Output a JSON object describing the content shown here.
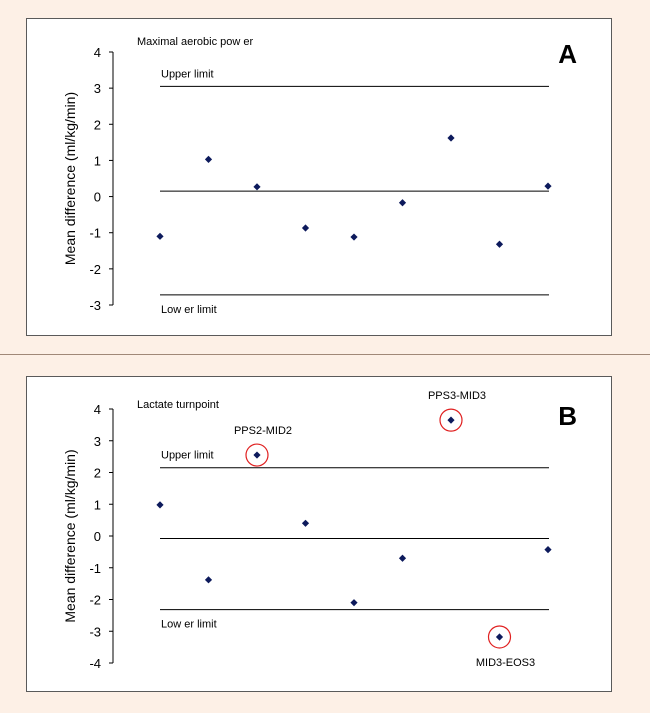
{
  "colors": {
    "background": "#fdf0e6",
    "marker": "#0d1a5c",
    "circle": "#e02020",
    "line": "#000000"
  },
  "chart_data": [
    {
      "type": "scatter",
      "panel_letter": "A",
      "title": "Maximal aerobic pow er",
      "ylabel": "Mean difference (ml/kg/min)",
      "ylim": [
        -3,
        4
      ],
      "yticks": [
        "4",
        "3",
        "2",
        "1",
        "0",
        "-1",
        "-2",
        "-3"
      ],
      "x": [
        1,
        2,
        3,
        4,
        5,
        6,
        7,
        8,
        9
      ],
      "values": [
        -1.1,
        1.03,
        0.27,
        -0.87,
        -1.12,
        -0.17,
        1.62,
        -1.32,
        0.29
      ],
      "mean_line": 0.15,
      "upper_limit": {
        "value": 3.05,
        "label": "Upper limit"
      },
      "lower_limit": {
        "value": -2.72,
        "label": "Low er limit"
      },
      "annotations": []
    },
    {
      "type": "scatter",
      "panel_letter": "B",
      "title": "Lactate turnpoint",
      "ylabel": "Mean difference (ml/kg/min)",
      "ylim": [
        -4,
        4
      ],
      "yticks": [
        "4",
        "3",
        "2",
        "1",
        "0",
        "-1",
        "-2",
        "-3",
        "-4"
      ],
      "x": [
        1,
        2,
        3,
        4,
        5,
        6,
        7,
        8,
        9
      ],
      "values": [
        0.98,
        -1.38,
        2.55,
        0.4,
        -2.1,
        -0.7,
        3.65,
        -3.18,
        -0.43
      ],
      "mean_line": -0.08,
      "upper_limit": {
        "value": 2.15,
        "label": "Upper limit"
      },
      "lower_limit": {
        "value": -2.32,
        "label": "Low er limit"
      },
      "annotations": [
        {
          "point_index": 2,
          "label": "PPS2-MID2",
          "position": "above"
        },
        {
          "point_index": 6,
          "label": "PPS3-MID3",
          "position": "above"
        },
        {
          "point_index": 7,
          "label": "MID3-EOS3",
          "position": "below"
        }
      ]
    }
  ]
}
